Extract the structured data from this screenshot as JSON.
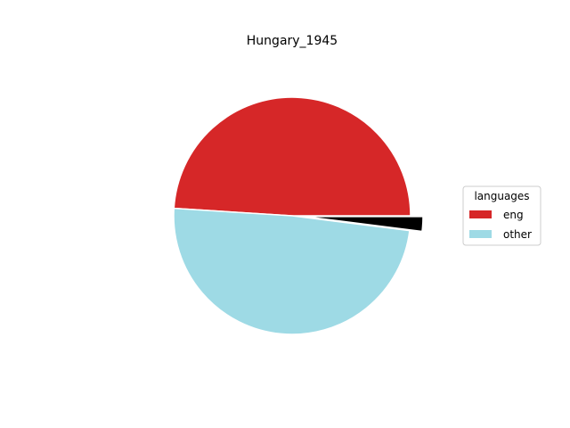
{
  "chart_data": {
    "type": "pie",
    "title": "Hungary_1945",
    "legend": {
      "title": "languages",
      "placement": "right"
    },
    "slices": [
      {
        "label": "eng",
        "value": 49.0,
        "color": "#d62728"
      },
      {
        "label": "other",
        "value": 49.0,
        "color": "#9edae5"
      },
      {
        "label": "",
        "value": 2.0,
        "color": "#000000",
        "exploded": true
      }
    ]
  }
}
